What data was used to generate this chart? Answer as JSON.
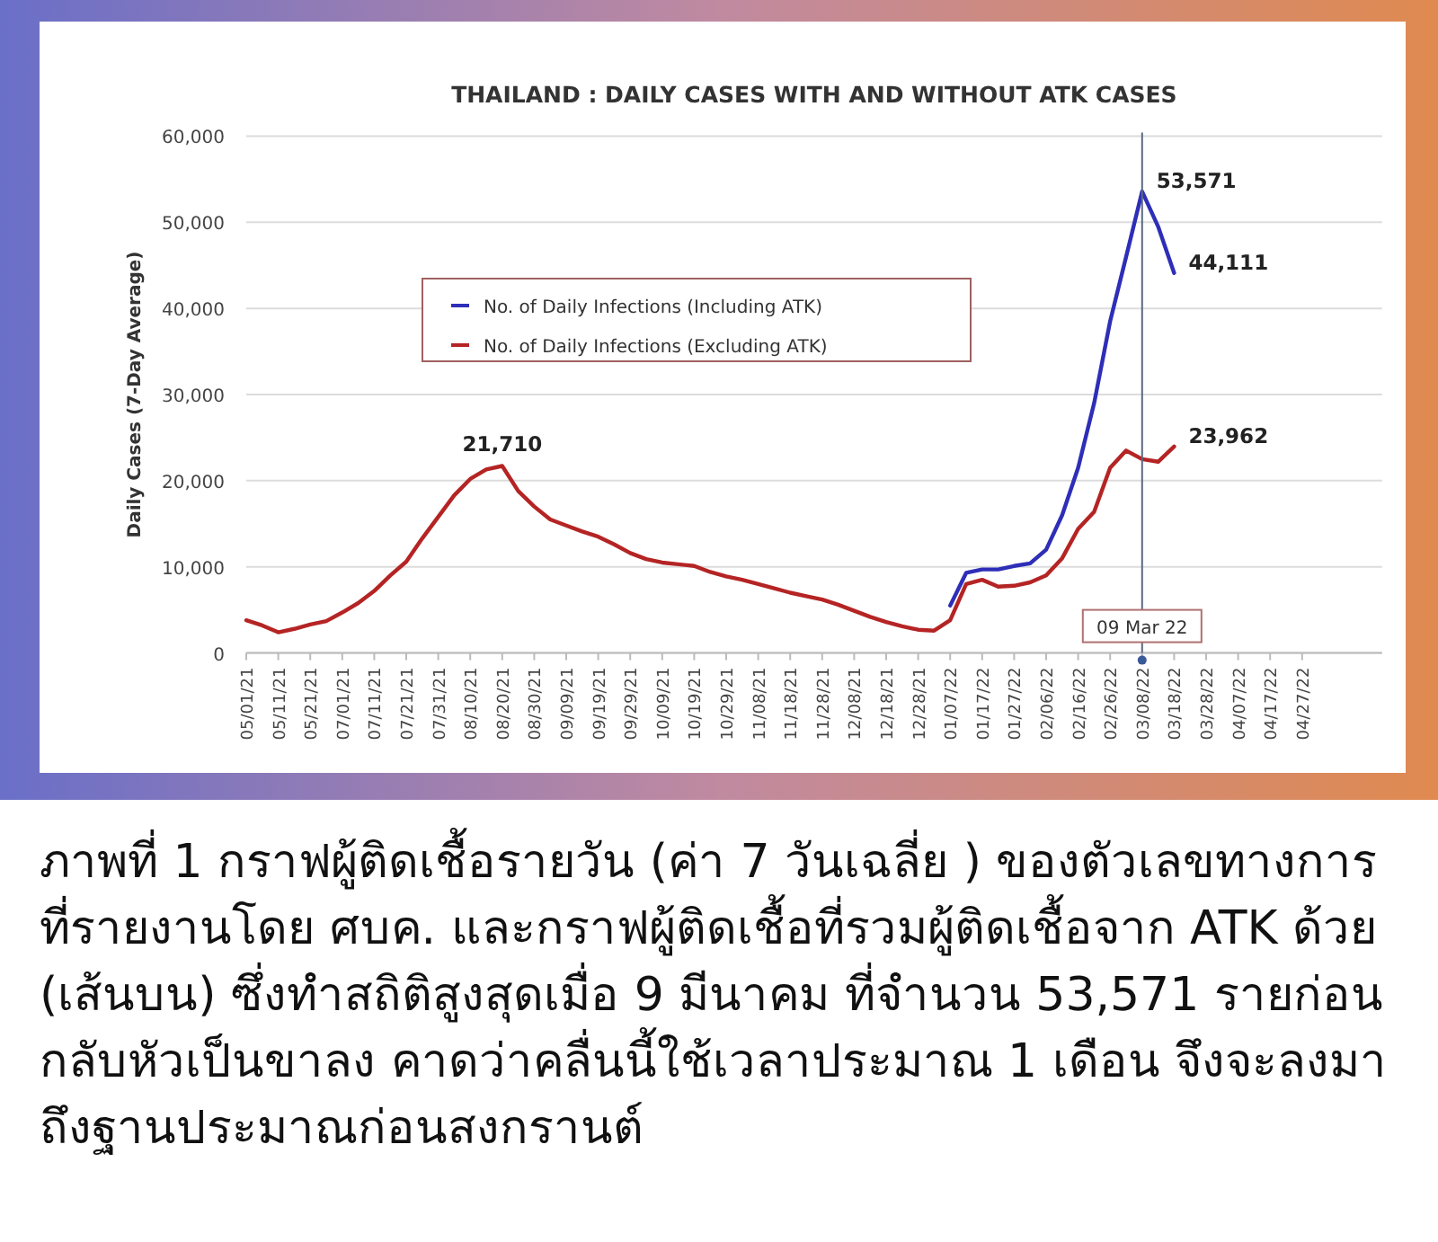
{
  "chart_data": {
    "type": "line",
    "title": "THAILAND : DAILY CASES WITH AND WITHOUT ATK CASES",
    "ylabel": "Daily Cases (7-Day Average)",
    "categories": [
      "05/01/21",
      null,
      "05/11/21",
      null,
      "05/21/21",
      null,
      "07/01/21",
      null,
      "07/11/21",
      null,
      "07/21/21",
      null,
      "07/31/21",
      null,
      "08/10/21",
      null,
      "08/20/21",
      null,
      "08/30/21",
      null,
      "09/09/21",
      null,
      "09/19/21",
      null,
      "09/29/21",
      null,
      "10/09/21",
      null,
      "10/19/21",
      null,
      "10/29/21",
      null,
      "11/08/21",
      null,
      "11/18/21",
      null,
      "11/28/21",
      null,
      "12/08/21",
      null,
      "12/18/21",
      null,
      "12/28/21",
      null,
      "01/07/22",
      null,
      "01/17/22",
      null,
      "01/27/22",
      null,
      "02/06/22",
      null,
      "02/16/22",
      null,
      "02/26/22",
      null,
      "03/08/22",
      null,
      "03/18/22",
      null,
      "03/28/22",
      null,
      "04/07/22",
      null,
      "04/17/22",
      null,
      "04/27/22",
      null,
      null,
      null,
      null
    ],
    "ylim": [
      0,
      60000
    ],
    "yticks": [
      {
        "value": 0,
        "label": "0"
      },
      {
        "value": 10000,
        "label": "10,000"
      },
      {
        "value": 20000,
        "label": "20,000"
      },
      {
        "value": 30000,
        "label": "30,000"
      },
      {
        "value": 40000,
        "label": "40,000"
      },
      {
        "value": 50000,
        "label": "50,000"
      },
      {
        "value": 60000,
        "label": "60,000"
      }
    ],
    "grid": "y",
    "legend": "top",
    "line_style": "solid",
    "series": [
      {
        "name": "No. of Daily Infections (Including ATK)",
        "color": "#2e2eb8",
        "values": [
          null,
          null,
          null,
          null,
          null,
          null,
          null,
          null,
          null,
          null,
          null,
          null,
          null,
          null,
          null,
          null,
          null,
          null,
          null,
          null,
          null,
          null,
          null,
          null,
          null,
          null,
          null,
          null,
          null,
          null,
          null,
          null,
          null,
          null,
          null,
          null,
          null,
          null,
          null,
          null,
          null,
          null,
          null,
          null,
          5500,
          9300,
          9700,
          9700,
          10100,
          10400,
          12000,
          16000,
          21500,
          29000,
          38500,
          46000,
          53571,
          49500,
          44111,
          null,
          null,
          null,
          null,
          null,
          null,
          null,
          null,
          null,
          null,
          null,
          null
        ]
      },
      {
        "name": "No. of Daily Infections (Excluding ATK)",
        "color": "#b52424",
        "values": [
          3800,
          3200,
          2400,
          2800,
          3300,
          3700,
          4700,
          5800,
          7200,
          9000,
          10600,
          13300,
          15800,
          18300,
          20200,
          21300,
          21710,
          18800,
          17000,
          15500,
          14800,
          14100,
          13500,
          12600,
          11600,
          10900,
          10500,
          10300,
          10100,
          9400,
          8900,
          8500,
          8000,
          7500,
          7000,
          6600,
          6200,
          5600,
          4900,
          4200,
          3600,
          3100,
          2700,
          2600,
          3800,
          8000,
          8500,
          7700,
          7800,
          8200,
          9000,
          11000,
          14400,
          16400,
          21500,
          23500,
          22500,
          22200,
          23962,
          null,
          null,
          null,
          null,
          null,
          null,
          null,
          null,
          null,
          null,
          null,
          null
        ]
      }
    ],
    "ref_lines": [
      {
        "axis": "x",
        "value": "03/08/22",
        "label": "09 Mar 22",
        "color": "#5a6a80"
      }
    ],
    "annotations": [
      {
        "text": "21,710",
        "x": "08/20/21",
        "y": 21710
      },
      {
        "text": "53,571",
        "x": "03/08/22",
        "y": 53571
      },
      {
        "text": "44,111",
        "x": "03/18/22",
        "y": 44111
      },
      {
        "text": "23,962",
        "x": "03/18/22",
        "y": 23962
      },
      "ภาพที่ 1 กราฟผู้ติดเชื้อรายวัน (ค่า 7 วันเฉลี่ย ) ของตัวเลขทางการที่รายงานโดย ศบค. และกราฟผู้ติดเชื้อที่รวมผู้ติดเชื้อจาก ATK ด้วย (เส้นบน) ซึ่งทำสถิติสูงสุดเมื่อ 9 มีนาคม ที่จำนวน 53,571 รายก่อนกลับหัวเป็นขาลง คาดว่าคลื่นนี้ใช้เวลาประมาณ 1 เดือน จึงจะลงมาถึงฐานประมาณก่อนสงกรานต์"
    ]
  }
}
